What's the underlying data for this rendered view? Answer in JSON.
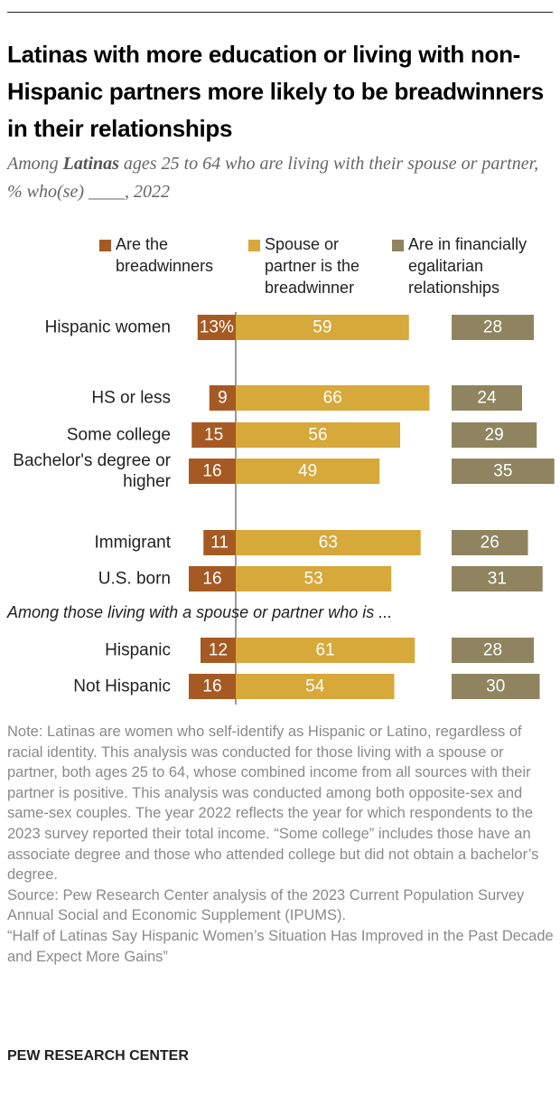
{
  "chart_data": {
    "type": "bar",
    "title": "Latinas with more education or living with non-Hispanic partners more likely to be breadwinners in their relationships",
    "subtitle": [
      "Among",
      "Latinas",
      "ages 25 to 64 who are living with their spouse or partner, % who(se) ____, 2022"
    ],
    "categories": [
      "Hispanic women",
      "HS or less",
      "Some college",
      "Bachelor's degree or higher",
      "Immigrant",
      "U.S. born",
      "Hispanic",
      "Not Hispanic"
    ],
    "section_label": "Among those living with a spouse or partner who is ...",
    "series": [
      {
        "name": "Are the breadwinners",
        "color": "#a65a23",
        "values": [
          13,
          9,
          15,
          16,
          11,
          16,
          12,
          16
        ],
        "value_labels": [
          "13%",
          "9",
          "15",
          "16",
          "11",
          "16",
          "12",
          "16"
        ]
      },
      {
        "name": "Spouse or partner is the breadwinner",
        "color": "#d7a83a",
        "values": [
          59,
          66,
          56,
          49,
          63,
          53,
          61,
          54
        ]
      },
      {
        "name": "Are in financially egalitarian relationships",
        "color": "#8f845f",
        "values": [
          28,
          24,
          29,
          35,
          26,
          31,
          28,
          30
        ]
      }
    ],
    "note": "Note: Latinas are women who self-identify as Hispanic or Latino, regardless of racial identity. This analysis was conducted for those living with a spouse or partner, both ages 25 to 64, whose combined income from all sources with their partner is positive. This analysis was conducted among both opposite-sex and same-sex couples. The year 2022 reflects the year for which respondents to the 2023 survey reported their total income. “Some college” includes those have an associate degree and those who attended college but did not obtain a bachelor’s degree.",
    "source": "Source: Pew Research Center analysis of the 2023 Current Population Survey Annual Social and Economic Supplement (IPUMS).",
    "report": "“Half of Latinas Say Hispanic Women’s Situation Has Improved in the Past Decade and Expect More Gains”",
    "footer": "PEW RESEARCH CENTER"
  }
}
